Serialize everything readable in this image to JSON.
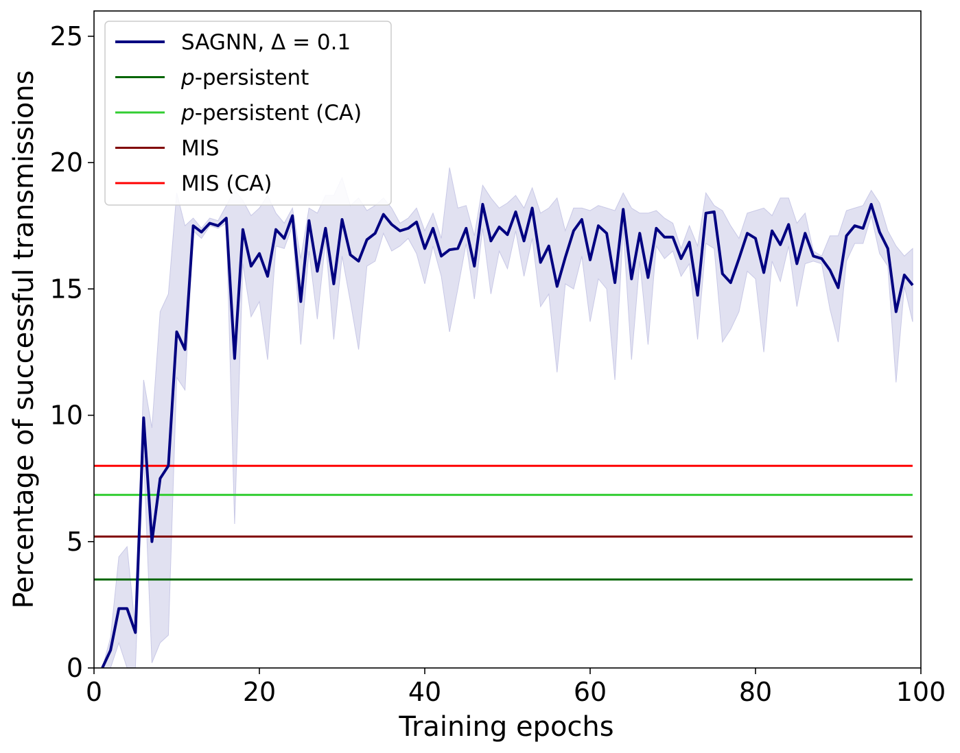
{
  "chart_data": {
    "type": "line",
    "title": "",
    "xlabel": "Training epochs",
    "ylabel": "Percentage of successful transmissions",
    "xlim": [
      0,
      100
    ],
    "ylim": [
      0,
      26
    ],
    "xticks": [
      0,
      20,
      40,
      60,
      80,
      100
    ],
    "yticks": [
      0,
      5,
      10,
      15,
      20,
      25
    ],
    "grid": false,
    "legend_position": "top-left",
    "series": [
      {
        "name": "SAGNN, Δ = 0.1",
        "color": "#000080",
        "x_start": 1,
        "x_step": 1,
        "values": [
          0,
          0.7,
          2.35,
          2.35,
          1.4,
          9.9,
          5.0,
          7.5,
          8.0,
          13.3,
          12.6,
          17.5,
          17.25,
          17.6,
          17.5,
          17.8,
          12.25,
          17.35,
          15.9,
          16.4,
          15.5,
          17.35,
          17.0,
          17.9,
          14.5,
          17.7,
          15.7,
          17.4,
          15.2,
          17.75,
          16.35,
          16.1,
          16.95,
          17.2,
          17.95,
          17.55,
          17.3,
          17.4,
          17.65,
          16.6,
          17.4,
          16.3,
          16.55,
          16.6,
          17.4,
          15.9,
          18.35,
          16.9,
          17.45,
          17.15,
          18.05,
          16.9,
          18.2,
          16.05,
          16.7,
          15.1,
          16.25,
          17.3,
          17.75,
          16.15,
          17.5,
          17.2,
          15.25,
          18.15,
          15.4,
          17.2,
          15.45,
          17.4,
          17.05,
          17.05,
          16.2,
          16.85,
          14.75,
          18.0,
          18.05,
          15.6,
          15.25,
          16.2,
          17.2,
          17.0,
          15.65,
          17.3,
          16.75,
          17.55,
          16.0,
          17.2,
          16.3,
          16.2,
          15.75,
          15.05,
          17.1,
          17.5,
          17.4,
          18.35,
          17.25,
          16.6,
          14.1,
          15.55,
          15.15
        ],
        "band_lower": [
          0,
          0.0,
          1.0,
          0.0,
          0.0,
          8.4,
          0.2,
          1.0,
          1.3,
          11.5,
          11.0,
          17.3,
          17.0,
          17.5,
          17.4,
          17.6,
          5.7,
          16.0,
          13.9,
          14.5,
          12.2,
          16.7,
          16.6,
          17.5,
          12.8,
          16.5,
          13.8,
          16.9,
          13.0,
          16.3,
          14.5,
          12.6,
          15.9,
          16.1,
          17.2,
          16.5,
          16.7,
          17.0,
          16.4,
          15.2,
          16.7,
          15.5,
          13.3,
          15.0,
          16.8,
          14.6,
          17.4,
          14.8,
          16.5,
          15.8,
          17.3,
          15.5,
          17.0,
          14.3,
          14.8,
          11.7,
          15.2,
          15.0,
          16.3,
          13.7,
          15.4,
          15.0,
          11.4,
          17.4,
          12.2,
          16.1,
          12.8,
          16.7,
          16.2,
          16.5,
          15.5,
          16.0,
          13.0,
          16.8,
          16.6,
          12.9,
          13.4,
          14.1,
          15.7,
          15.4,
          12.5,
          16.1,
          15.3,
          16.7,
          14.3,
          16.0,
          16.1,
          16.0,
          14.2,
          12.9,
          16.1,
          16.8,
          16.8,
          17.9,
          16.4,
          15.9,
          11.3,
          15.1,
          13.7
        ],
        "band_upper": [
          0,
          1.2,
          4.4,
          4.8,
          1.5,
          11.4,
          9.5,
          14.1,
          14.8,
          18.8,
          17.5,
          17.8,
          17.4,
          17.8,
          17.7,
          18.3,
          18.9,
          18.5,
          17.9,
          18.2,
          18.7,
          18.0,
          17.6,
          18.2,
          16.2,
          18.2,
          18.0,
          18.7,
          18.7,
          19.4,
          18.3,
          18.6,
          18.1,
          18.3,
          18.6,
          18.2,
          17.6,
          17.8,
          18.2,
          17.3,
          18.0,
          17.0,
          19.8,
          18.2,
          18.3,
          17.1,
          19.1,
          18.6,
          18.2,
          18.4,
          18.7,
          18.2,
          19.0,
          18.0,
          18.2,
          18.6,
          17.3,
          18.2,
          18.2,
          18.1,
          18.3,
          18.2,
          18.1,
          18.8,
          18.2,
          18.0,
          18.0,
          18.1,
          17.8,
          17.6,
          16.6,
          17.5,
          16.7,
          18.8,
          18.3,
          18.1,
          17.5,
          17.0,
          18.0,
          18.1,
          18.2,
          17.9,
          18.6,
          18.6,
          17.6,
          18.0,
          16.5,
          16.3,
          17.1,
          17.1,
          18.1,
          18.2,
          18.3,
          18.9,
          18.4,
          17.3,
          16.7,
          16.3,
          16.6
        ]
      },
      {
        "name": "p-persistent",
        "color": "#006400",
        "constant": 3.5
      },
      {
        "name": "p-persistent (CA)",
        "color": "#32cd32",
        "constant": 6.85
      },
      {
        "name": "MIS",
        "color": "#800000",
        "constant": 5.2
      },
      {
        "name": "MIS (CA)",
        "color": "#ff0000",
        "constant": 8.0
      }
    ]
  },
  "legend": {
    "items": [
      {
        "prefix": "",
        "italic": "",
        "suffix": "SAGNN, Δ = 0.1",
        "color": "#000080"
      },
      {
        "prefix": "",
        "italic": "p",
        "suffix": "-persistent",
        "color": "#006400"
      },
      {
        "prefix": "",
        "italic": "p",
        "suffix": "-persistent (CA)",
        "color": "#32cd32"
      },
      {
        "prefix": "",
        "italic": "",
        "suffix": "MIS",
        "color": "#800000"
      },
      {
        "prefix": "",
        "italic": "",
        "suffix": "MIS (CA)",
        "color": "#ff0000"
      }
    ]
  },
  "colors": {
    "band_fill": "#c8c8e6"
  }
}
